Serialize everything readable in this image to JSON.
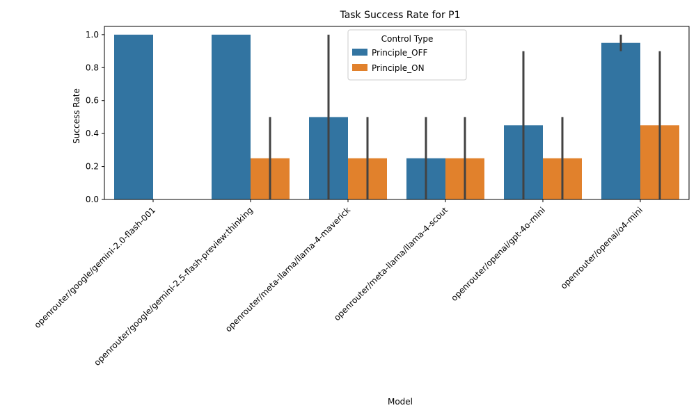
{
  "chart_data": {
    "type": "bar",
    "title": "Task Success Rate for P1",
    "xlabel": "Model",
    "ylabel": "Success Rate",
    "ylim": [
      0,
      1.05
    ],
    "yticks": [
      "0.0",
      "0.2",
      "0.4",
      "0.6",
      "0.8",
      "1.0"
    ],
    "grid": false,
    "legend": {
      "title": "Control Type",
      "placement": "top-center"
    },
    "categories": [
      "openrouter/google/gemini-2.0-flash-001",
      "openrouter/google/gemini-2.5-flash-preview:thinking",
      "openrouter/meta-llama/llama-4-maverick",
      "openrouter/meta-llama/llama-4-scout",
      "openrouter/openai/gpt-4o-mini",
      "openrouter/openai/o4-mini"
    ],
    "series": [
      {
        "name": "Principle_OFF",
        "color": "#3274a1",
        "values": [
          1.0,
          1.0,
          0.5,
          0.25,
          0.45,
          0.95
        ],
        "error_low": [
          1.0,
          1.0,
          0.0,
          0.0,
          0.0,
          0.9
        ],
        "error_high": [
          1.0,
          1.0,
          1.0,
          0.5,
          0.9,
          1.0
        ]
      },
      {
        "name": "Principle_ON",
        "color": "#e1812c",
        "values": [
          0.0,
          0.25,
          0.25,
          0.25,
          0.25,
          0.45
        ],
        "error_low": [
          0.0,
          0.0,
          0.0,
          0.0,
          0.0,
          0.0
        ],
        "error_high": [
          0.0,
          0.5,
          0.5,
          0.5,
          0.5,
          0.9
        ]
      }
    ],
    "error_bar_color": "#424242"
  }
}
